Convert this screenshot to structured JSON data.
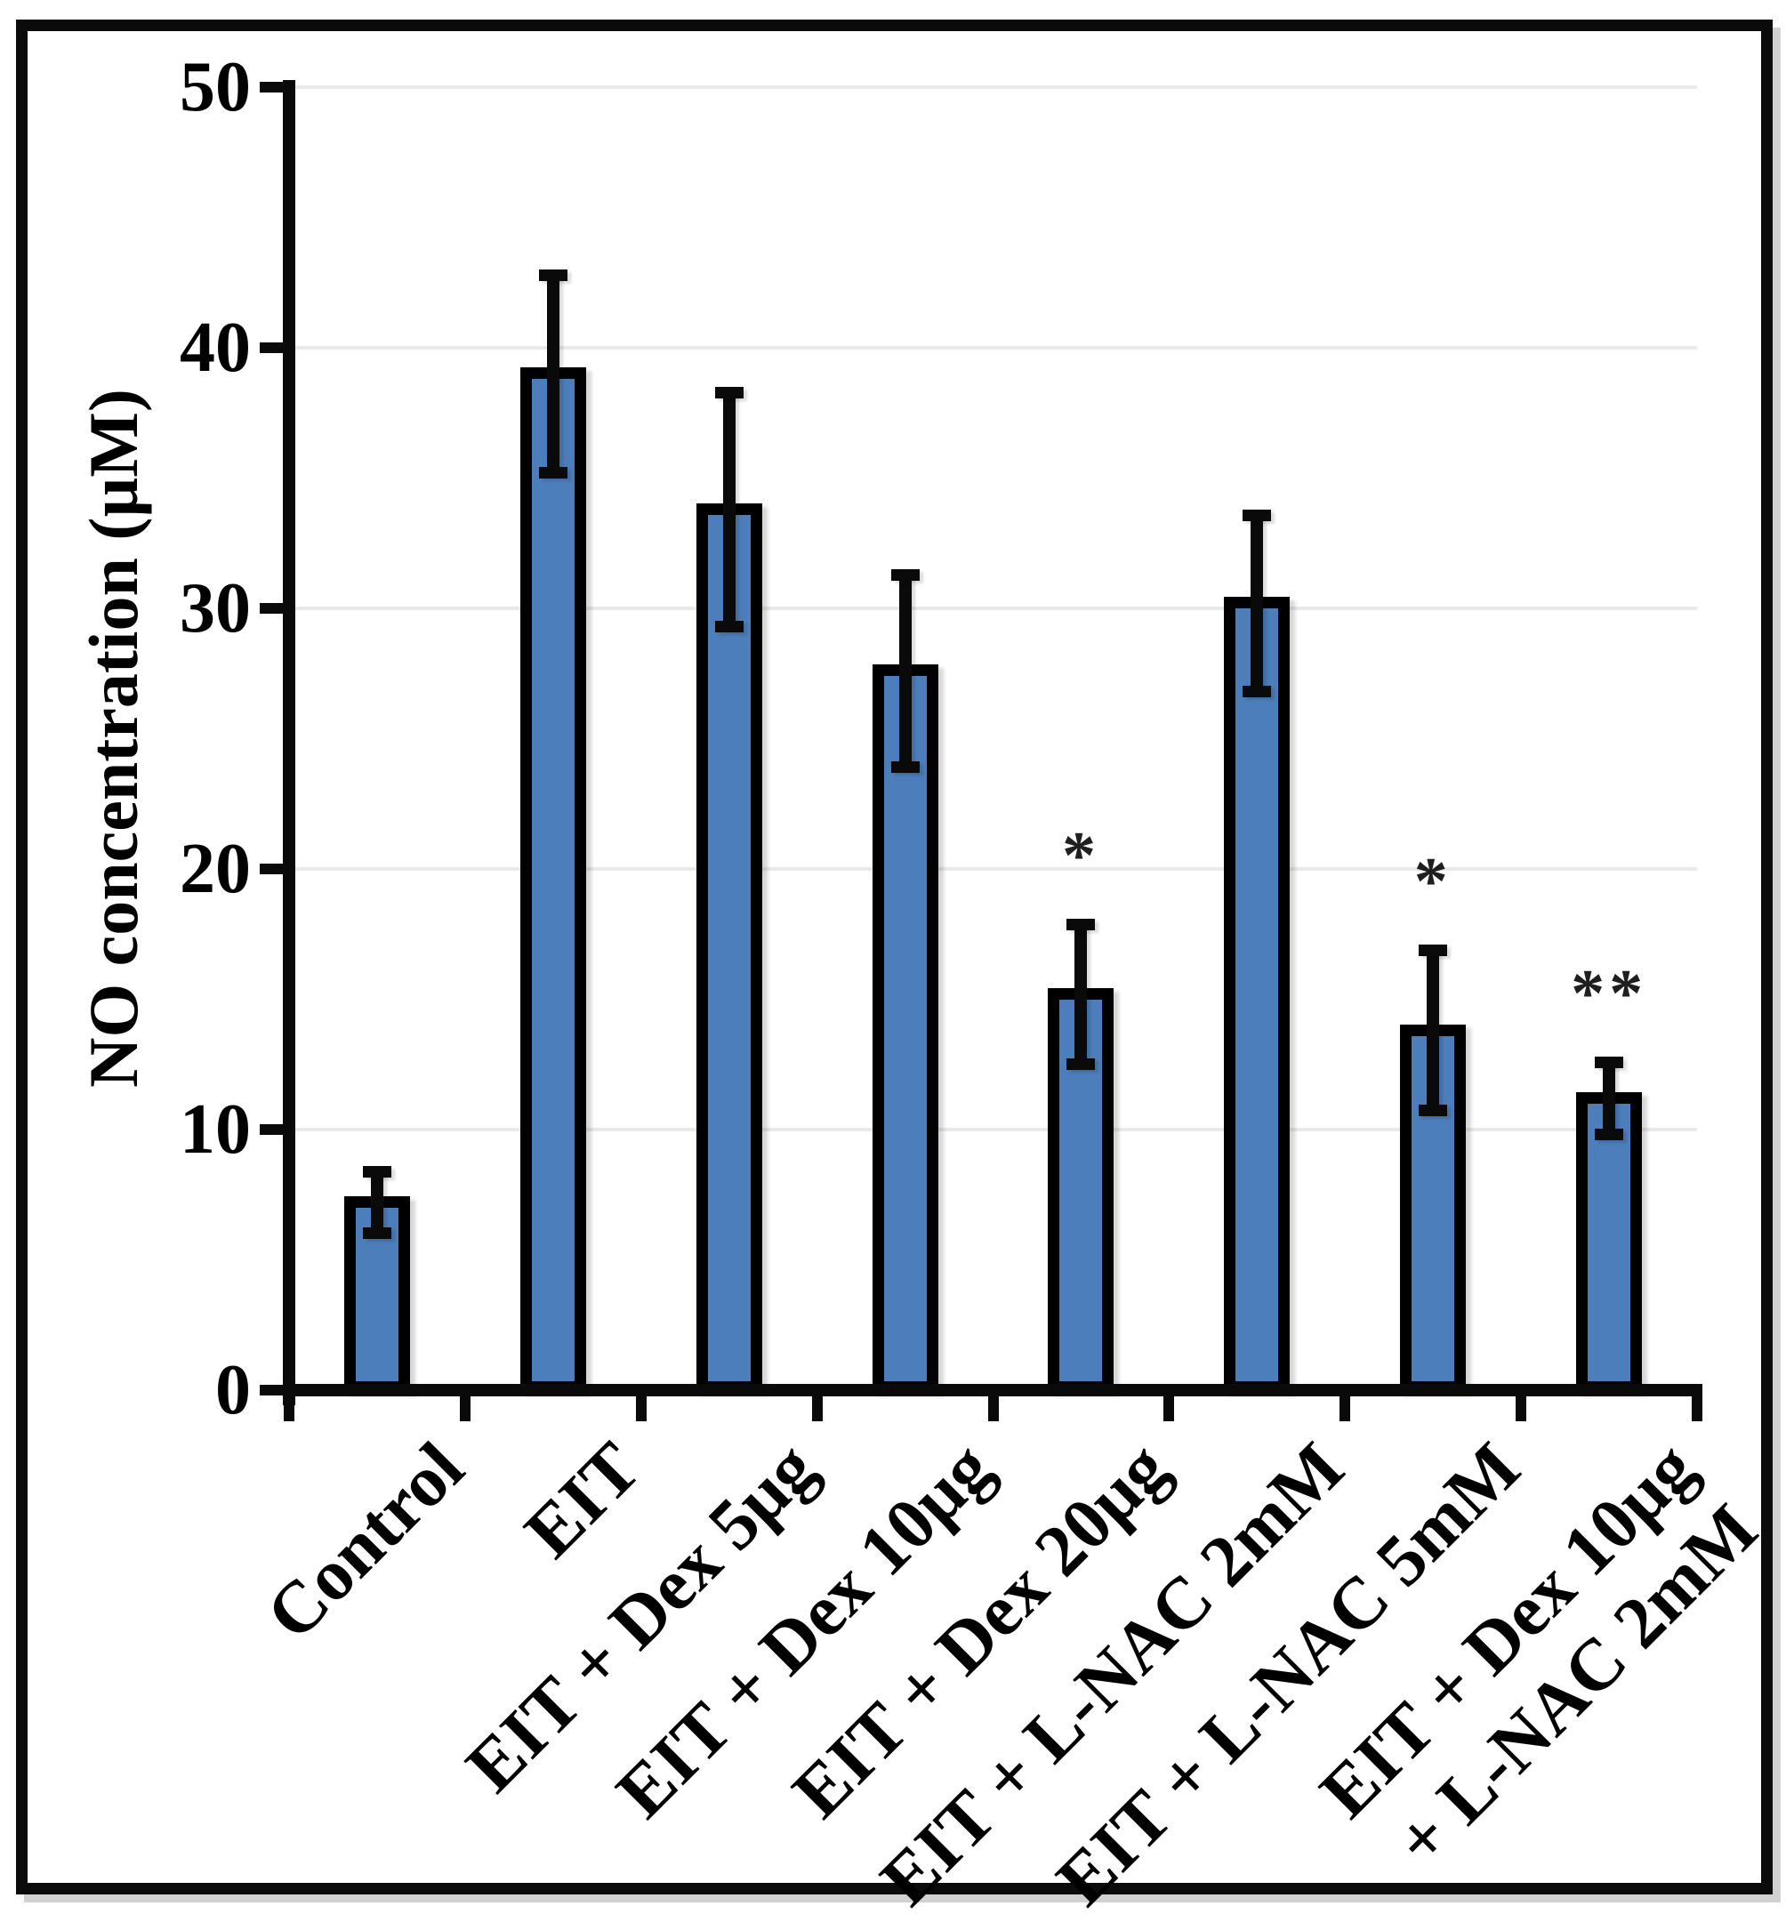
{
  "chart_data": {
    "type": "bar",
    "title": "",
    "ylabel": "NO concentration (µM)",
    "xlabel": "",
    "ylim": [
      0,
      50
    ],
    "yticks": [
      0,
      10,
      20,
      30,
      40,
      50
    ],
    "ytick_labels": [
      "0",
      "10",
      "20",
      "30",
      "40",
      "50"
    ],
    "grid": "horizontal gridlines at every 10, light gray, on",
    "legend": "none",
    "bar_color": "#4C7EBB",
    "bar_border_color": "#000000",
    "error_bar_color": "#0a0a0a",
    "sig_marker_color": "#1f1f1f",
    "gridline_color": "#e9e9e9",
    "frame_color": "#0b0b0b",
    "background_color": "#ffffff",
    "categories": [
      "Control",
      "EIT",
      "EIT + Dex 5µg",
      "EIT + Dex 10µg",
      "EIT + Dex 20µg",
      "EIT + L-NAC 2mM",
      "EIT + L-NAC 5mM",
      "EIT + Dex 10µg + L-NAC 2mM"
    ],
    "values": [
      7.2,
      39.0,
      33.8,
      27.6,
      15.2,
      30.2,
      13.8,
      11.2
    ],
    "errors": [
      1.2,
      3.8,
      4.5,
      3.7,
      2.7,
      3.4,
      3.1,
      1.4
    ],
    "sig_markers": [
      "",
      "",
      "",
      "",
      "*",
      "",
      "*",
      "**"
    ],
    "bars": [
      {
        "label_lines": [
          "Control"
        ],
        "value": 7.2,
        "error": 1.2,
        "sig": ""
      },
      {
        "label_lines": [
          "EIT"
        ],
        "value": 39.0,
        "error": 3.8,
        "sig": ""
      },
      {
        "label_lines": [
          "EIT + Dex 5µg"
        ],
        "value": 33.8,
        "error": 4.5,
        "sig": ""
      },
      {
        "label_lines": [
          "EIT + Dex 10µg"
        ],
        "value": 27.6,
        "error": 3.7,
        "sig": ""
      },
      {
        "label_lines": [
          "EIT + Dex 20µg"
        ],
        "value": 15.2,
        "error": 2.7,
        "sig": "*"
      },
      {
        "label_lines": [
          "EIT + L-NAC 2mM"
        ],
        "value": 30.2,
        "error": 3.4,
        "sig": ""
      },
      {
        "label_lines": [
          "EIT + L-NAC 5mM"
        ],
        "value": 13.8,
        "error": 3.1,
        "sig": "*"
      },
      {
        "label_lines": [
          "EIT + Dex 10µg",
          "+ L-NAC 2mM"
        ],
        "value": 11.2,
        "error": 1.4,
        "sig": "**"
      }
    ]
  }
}
